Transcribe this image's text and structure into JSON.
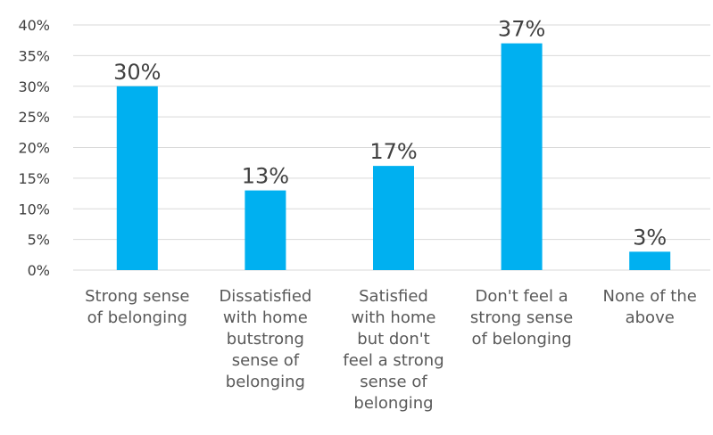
{
  "colors": {
    "bar": "#00b0f0",
    "grid": "#d9d9d9",
    "text": "#404040"
  },
  "chart_data": {
    "type": "bar",
    "title": "",
    "xlabel": "",
    "ylabel": "",
    "ylim": [
      0,
      40
    ],
    "grid": true,
    "y_ticks": [
      {
        "value": 0,
        "label": "0%"
      },
      {
        "value": 5,
        "label": "5%"
      },
      {
        "value": 10,
        "label": "10%"
      },
      {
        "value": 15,
        "label": "15%"
      },
      {
        "value": 20,
        "label": "20%"
      },
      {
        "value": 25,
        "label": "25%"
      },
      {
        "value": 30,
        "label": "30%"
      },
      {
        "value": 35,
        "label": "35%"
      },
      {
        "value": 40,
        "label": "40%"
      }
    ],
    "categories": [
      {
        "lines": [
          "Strong sense",
          "of belonging"
        ]
      },
      {
        "lines": [
          "Dissatisfied",
          "with home",
          "butstrong",
          "sense of",
          "belonging"
        ]
      },
      {
        "lines": [
          "Satisfied",
          "with home",
          "but  don't",
          "feel a strong",
          "sense of",
          "belonging"
        ]
      },
      {
        "lines": [
          "Don't feel a",
          "strong sense",
          "of belonging"
        ]
      },
      {
        "lines": [
          "None of the",
          "above"
        ]
      }
    ],
    "values": [
      30,
      13,
      17,
      37,
      3
    ],
    "data_labels": [
      "30%",
      "13%",
      "17%",
      "37%",
      "3%"
    ]
  }
}
